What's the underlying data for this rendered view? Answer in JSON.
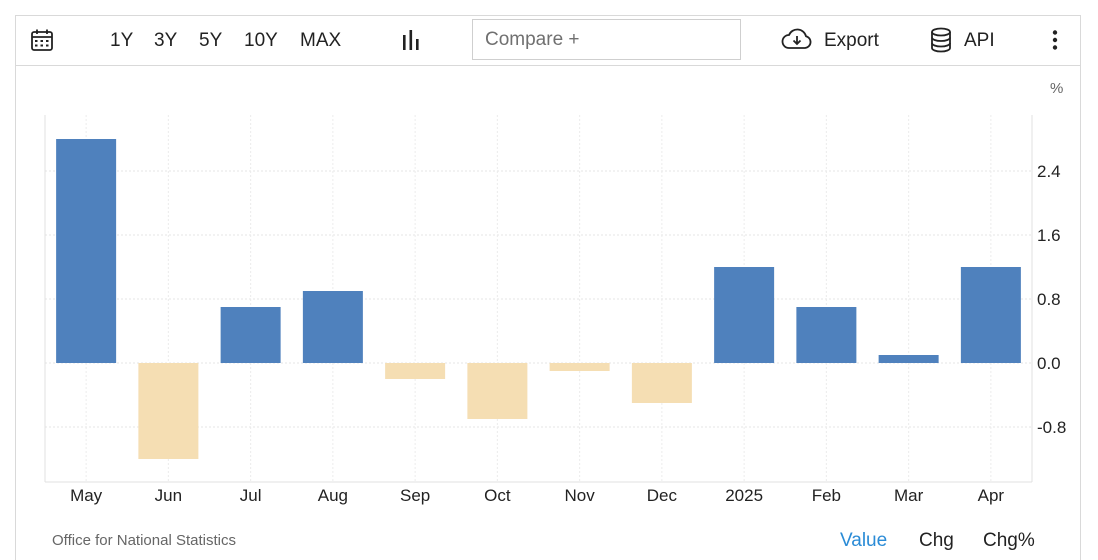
{
  "toolbar": {
    "ranges": [
      "1Y",
      "3Y",
      "5Y",
      "10Y",
      "MAX"
    ],
    "compare_placeholder": "Compare +",
    "export_label": "Export",
    "api_label": "API"
  },
  "footer": {
    "source": "Office for National Statistics",
    "tabs": [
      "Value",
      "Chg",
      "Chg%"
    ]
  },
  "colors": {
    "positive": "#4f81bd",
    "negative": "#f5deb3",
    "active_tab": "#2a8bd6"
  },
  "chart_data": {
    "type": "bar",
    "unit_label": "%",
    "categories": [
      "May",
      "Jun",
      "Jul",
      "Aug",
      "Sep",
      "Oct",
      "Nov",
      "Dec",
      "2025",
      "Feb",
      "Mar",
      "Apr"
    ],
    "values": [
      2.8,
      -1.2,
      0.7,
      0.9,
      -0.2,
      -0.7,
      -0.1,
      -0.5,
      1.2,
      0.7,
      0.1,
      1.2
    ],
    "y_ticks": [
      "2.4",
      "1.6",
      "0.8",
      "0.0",
      "-0.8"
    ],
    "ylim": [
      -1.5,
      3.1
    ],
    "grid": true,
    "y_axis_position": "right"
  }
}
